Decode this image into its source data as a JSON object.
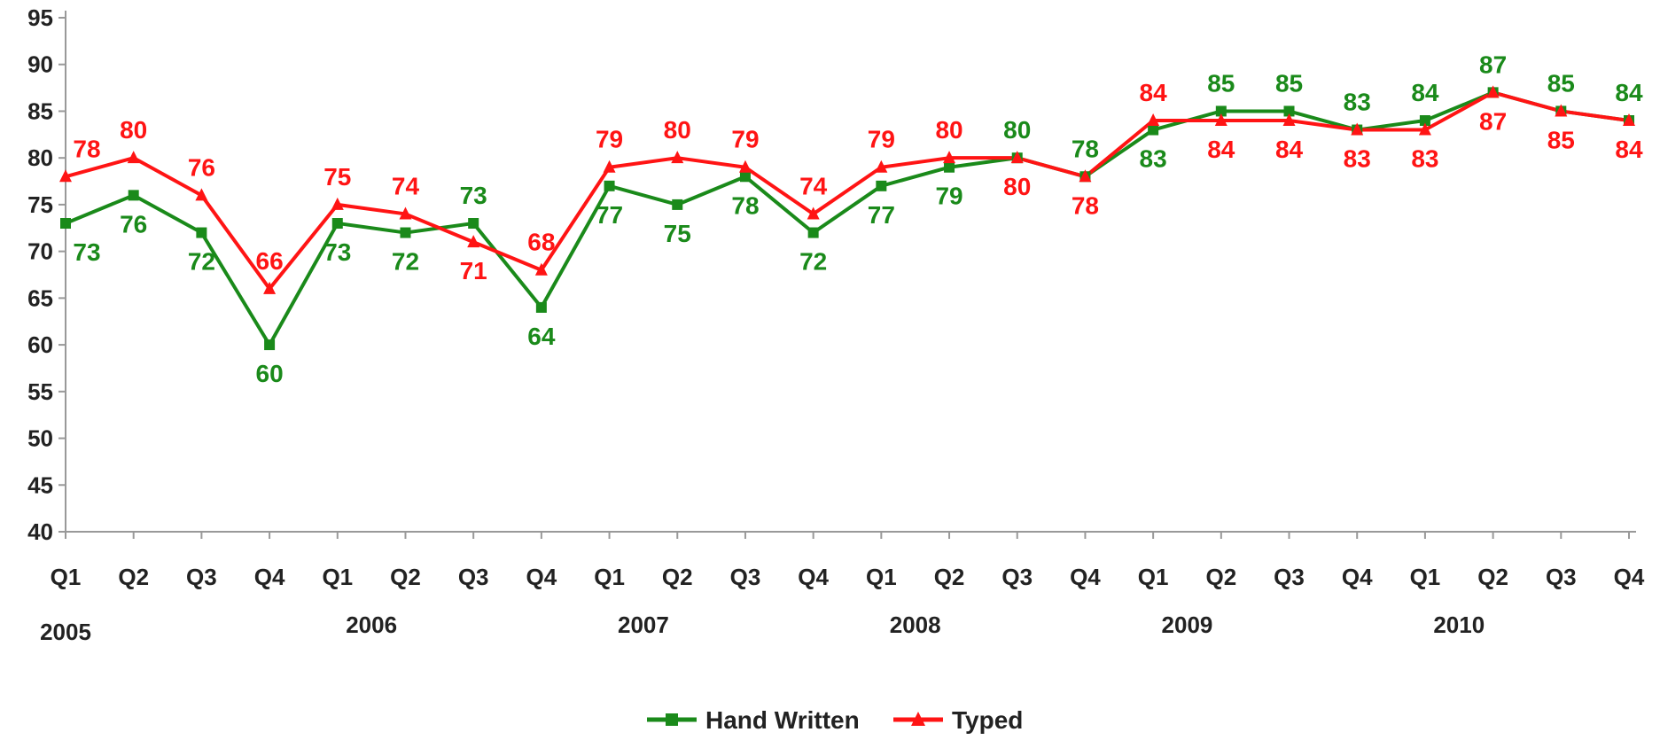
{
  "chart_data": {
    "type": "line",
    "categories": [
      "Q1",
      "Q2",
      "Q3",
      "Q4",
      "Q1",
      "Q2",
      "Q3",
      "Q4",
      "Q1",
      "Q2",
      "Q3",
      "Q4",
      "Q1",
      "Q2",
      "Q3",
      "Q4",
      "Q1",
      "Q2",
      "Q3",
      "Q4",
      "Q1",
      "Q2",
      "Q3",
      "Q4"
    ],
    "years": [
      "2005",
      "2006",
      "2007",
      "2008",
      "2009",
      "2010"
    ],
    "ylim": [
      40,
      95
    ],
    "yticks": [
      "40",
      "45",
      "50",
      "55",
      "60",
      "65",
      "70",
      "75",
      "80",
      "85",
      "90",
      "95"
    ],
    "grid": false,
    "legend_position": "bottom",
    "series": [
      {
        "name": "Hand Written",
        "color": "#1a8a1a",
        "marker": "square",
        "values": [
          73,
          76,
          72,
          60,
          73,
          72,
          73,
          64,
          77,
          75,
          78,
          72,
          77,
          79,
          80,
          78,
          83,
          85,
          85,
          83,
          84,
          87,
          85,
          84
        ]
      },
      {
        "name": "Typed",
        "color": "#ff1414",
        "marker": "triangle",
        "values": [
          78,
          80,
          76,
          66,
          75,
          74,
          71,
          68,
          79,
          80,
          79,
          74,
          79,
          80,
          80,
          78,
          84,
          84,
          84,
          83,
          83,
          87,
          85,
          84
        ]
      }
    ]
  }
}
